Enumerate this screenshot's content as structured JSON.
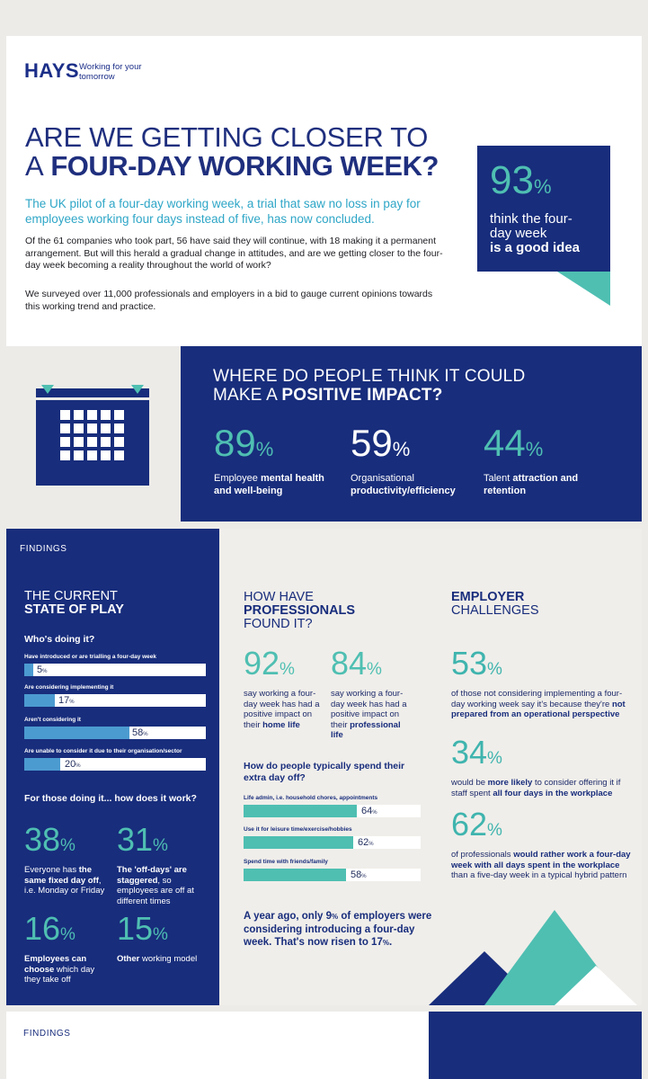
{
  "brand": {
    "logo": "HAYS",
    "tagline": "Working for your tomorrow",
    "colors": {
      "navy": "#182d7c",
      "teal": "#4fbfb2",
      "blue": "#2ea6c7",
      "bar_blue": "#4c9bd0"
    }
  },
  "hero": {
    "title_line1": "ARE WE GETTING CLOSER TO",
    "title_line2_prefix": "A",
    "title_line2_bold": "FOUR-DAY WORKING WEEK?",
    "lead": "The UK pilot of a four-day working week, a trial that saw no loss in pay for employees working four days instead of five, has now concluded.",
    "para1": "Of the 61 companies who took part, 56 have said they will continue, with 18 making it a permanent arrangement. But will this herald a gradual change in attitudes, and are we getting closer to the four-day week becoming a reality throughout the world of work?",
    "para2": "We surveyed over 11,000 professionals and employers in a bid to gauge current opinions towards this working trend and practice.",
    "stat": {
      "value": "93",
      "pct": "%",
      "text": "think the four-day week",
      "text_bold": "is a good idea"
    }
  },
  "impact": {
    "title_line1": "WHERE DO PEOPLE THINK IT COULD",
    "title_line2_prefix": "MAKE A",
    "title_line2_bold": "POSITIVE IMPACT?",
    "stats": [
      {
        "value": "89",
        "pct": "%",
        "label_plain": "Employee",
        "label_bold": "mental health and well-being"
      },
      {
        "value": "59",
        "pct": "%",
        "label_plain": "Organisational",
        "label_bold": "productivity/efficiency"
      },
      {
        "value": "44",
        "pct": "%",
        "label_plain": "Talent",
        "label_bold": "attraction and retention"
      }
    ]
  },
  "findings": {
    "label": "FINDINGS",
    "state": {
      "title_line1": "THE CURRENT",
      "title_line2": "STATE OF PLAY",
      "who_heading": "Who's doing it?",
      "bars": [
        {
          "label": "Have introduced or are trialling a four-day week",
          "value": 5,
          "display": "5"
        },
        {
          "label": "Are considering implementing it",
          "value": 17,
          "display": "17"
        },
        {
          "label": "Aren't considering it",
          "value": 58,
          "display": "58"
        },
        {
          "label": "Are unable to consider it due to their organisation/sector",
          "value": 20,
          "display": "20"
        }
      ],
      "pct_symbol": "%",
      "how_heading": "For those doing it... how does it work?",
      "methods": [
        {
          "value": "38",
          "pct": "%",
          "pre": "Everyone has",
          "bold": "the same fixed day off",
          "post": ", i.e. Monday or Friday"
        },
        {
          "value": "31",
          "pct": "%",
          "pre": "",
          "bold": "The 'off-days' are staggered",
          "post": ", so employees are off at different times"
        },
        {
          "value": "16",
          "pct": "%",
          "pre": "",
          "bold": "Employees can choose",
          "post": " which day they take off"
        },
        {
          "value": "15",
          "pct": "%",
          "pre": "",
          "bold": "Other",
          "post": " working model"
        }
      ]
    },
    "professionals": {
      "title_line1": "HOW HAVE",
      "title_line2": "PROFESSIONALS",
      "title_line3": "FOUND IT?",
      "stats": [
        {
          "value": "92",
          "pct": "%",
          "text": "say working a four-day week has had a positive impact on their",
          "bold": "home life"
        },
        {
          "value": "84",
          "pct": "%",
          "text": "say working a four-day week has had a positive impact on their",
          "bold": "professional life"
        }
      ],
      "spend_heading": "How do people typically spend their extra day off?",
      "spend_bars": [
        {
          "label": "Life admin, i.e. household chores, appointments",
          "value": 64,
          "display": "64"
        },
        {
          "label": "Use it for leisure time/exercise/hobbies",
          "value": 62,
          "display": "62"
        },
        {
          "label": "Spend time with friends/family",
          "value": 58,
          "display": "58"
        }
      ],
      "ago_prefix": "A year ago, only 9",
      "ago_pct": "%",
      "ago_middle": " of employers were considering introducing a four-day week. That's now risen to 17",
      "ago_pct2": "%",
      "ago_end": "."
    },
    "employer": {
      "title_line1": "EMPLOYER",
      "title_line2": "CHALLENGES",
      "stats": [
        {
          "value": "53",
          "pct": "%",
          "pre": "of those not considering implementing a four-day working week say it's because they're",
          "bold": "not prepared from an operational perspective",
          "post": ""
        },
        {
          "value": "34",
          "pct": "%",
          "pre": "would be",
          "bold": "more likely",
          "post": " to consider offering it if staff spent ",
          "bold2": "all four days in the workplace"
        },
        {
          "value": "62",
          "pct": "%",
          "pre": "of professionals",
          "bold": "would rather work a four-day week with all days spent in the workplace",
          "post": " than a five-day week in a typical hybrid pattern"
        }
      ]
    }
  },
  "page3": {
    "label": "FINDINGS"
  }
}
